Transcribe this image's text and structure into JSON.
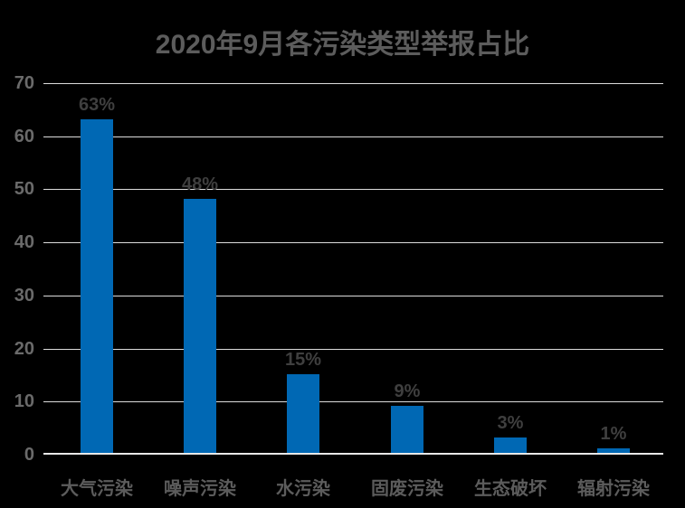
{
  "chart_data": {
    "type": "bar",
    "title": "2020年9月各污染类型举报占比",
    "categories": [
      "大气污染",
      "噪声污染",
      "水污染",
      "固废污染",
      "生态破坏",
      "辐射污染"
    ],
    "values": [
      63,
      48,
      15,
      9,
      3,
      1
    ],
    "value_labels": [
      "63%",
      "48%",
      "15%",
      "9%",
      "3%",
      "1%"
    ],
    "xlabel": "",
    "ylabel": "",
    "ylim": [
      0,
      70
    ],
    "yticks": [
      0,
      10,
      20,
      30,
      40,
      50,
      60,
      70
    ],
    "grid": true,
    "legend_position": "none",
    "colors": {
      "background": "#000000",
      "bar": "#0068B4",
      "gridline": "#DCDCDC",
      "axis_line": "#E8E8E8",
      "title_text": "#5C5C5C",
      "y_tick_text": "#6A6A6A",
      "value_label_text": "#3F3F3F",
      "category_text": "#5C5C5C"
    }
  }
}
